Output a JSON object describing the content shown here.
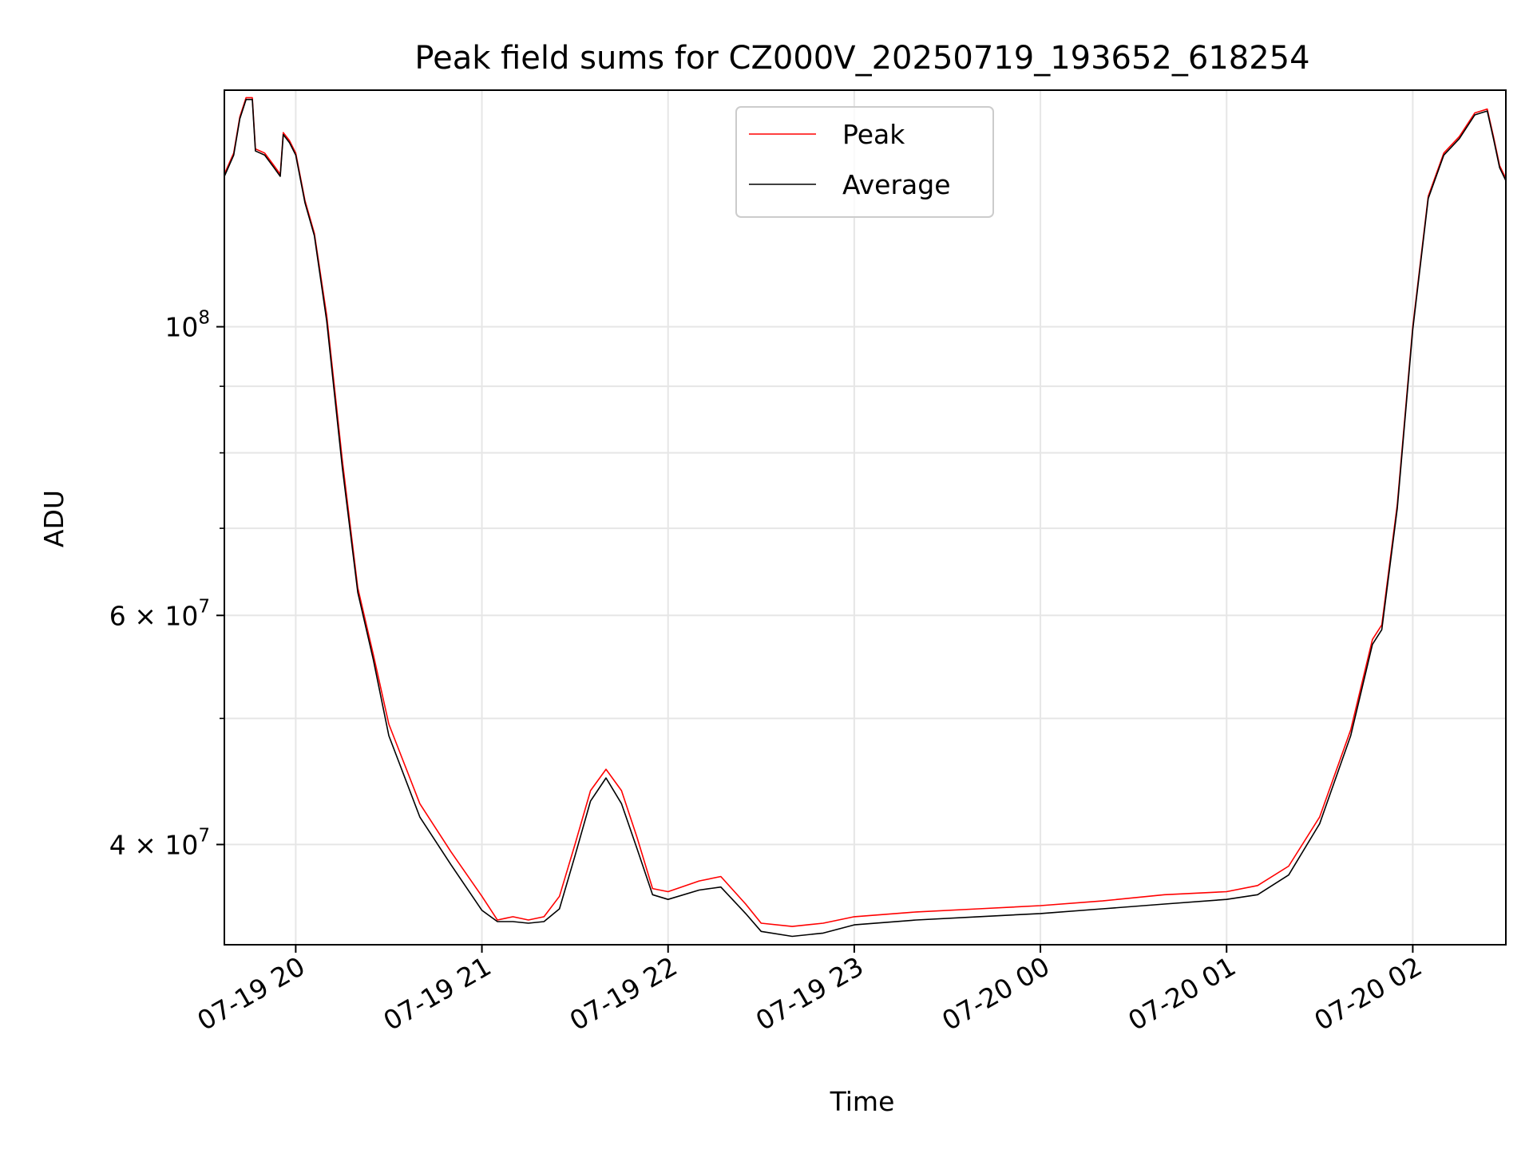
{
  "chart_data": {
    "type": "line",
    "title": "Peak field sums for CZ000V_20250719_193652_618254",
    "xlabel": "Time",
    "ylabel": "ADU",
    "y_scale": "log",
    "xlim": [
      "2025-07-19 19:37",
      "2025-07-20 02:30"
    ],
    "ylim": [
      33500000,
      152000000
    ],
    "grid": true,
    "legend_position": "top-center",
    "x_ticks": [
      {
        "t": "2025-07-19 20:00",
        "label": "07-19 20"
      },
      {
        "t": "2025-07-19 21:00",
        "label": "07-19 21"
      },
      {
        "t": "2025-07-19 22:00",
        "label": "07-19 22"
      },
      {
        "t": "2025-07-19 23:00",
        "label": "07-19 23"
      },
      {
        "t": "2025-07-20 00:00",
        "label": "07-20 00"
      },
      {
        "t": "2025-07-20 01:00",
        "label": "07-20 01"
      },
      {
        "t": "2025-07-20 02:00",
        "label": "07-20 02"
      }
    ],
    "y_major_ticks": [
      {
        "value": 100000000,
        "mant": "10",
        "exp": "8"
      },
      {
        "value": 60000000,
        "mant": "6 × 10",
        "exp": "7"
      },
      {
        "value": 40000000,
        "mant": "4 × 10",
        "exp": "7"
      }
    ],
    "y_minor_ticks": [
      50000000,
      70000000,
      80000000,
      90000000
    ],
    "series": [
      {
        "name": "Peak",
        "color": "#ff0000",
        "points": [
          [
            "2025-07-19 19:37",
            131000000
          ],
          [
            "2025-07-19 19:40",
            136000000
          ],
          [
            "2025-07-19 19:42",
            145000000
          ],
          [
            "2025-07-19 19:44",
            150000000
          ],
          [
            "2025-07-19 19:46",
            150000000
          ],
          [
            "2025-07-19 19:47",
            137000000
          ],
          [
            "2025-07-19 19:50",
            136000000
          ],
          [
            "2025-07-19 19:53",
            133000000
          ],
          [
            "2025-07-19 19:55",
            131000000
          ],
          [
            "2025-07-19 19:56",
            141000000
          ],
          [
            "2025-07-19 19:58",
            139000000
          ],
          [
            "2025-07-19 20:00",
            136000000
          ],
          [
            "2025-07-19 20:03",
            125000000
          ],
          [
            "2025-07-19 20:06",
            118000000
          ],
          [
            "2025-07-19 20:10",
            102000000
          ],
          [
            "2025-07-19 20:15",
            79000000
          ],
          [
            "2025-07-19 20:20",
            63000000
          ],
          [
            "2025-07-19 20:25",
            56000000
          ],
          [
            "2025-07-19 20:30",
            49500000
          ],
          [
            "2025-07-19 20:40",
            43000000
          ],
          [
            "2025-07-19 20:50",
            39500000
          ],
          [
            "2025-07-19 21:00",
            36500000
          ],
          [
            "2025-07-19 21:05",
            35000000
          ],
          [
            "2025-07-19 21:10",
            35200000
          ],
          [
            "2025-07-19 21:15",
            35000000
          ],
          [
            "2025-07-19 21:20",
            35200000
          ],
          [
            "2025-07-19 21:25",
            36500000
          ],
          [
            "2025-07-19 21:30",
            40000000
          ],
          [
            "2025-07-19 21:35",
            44000000
          ],
          [
            "2025-07-19 21:40",
            45700000
          ],
          [
            "2025-07-19 21:45",
            44000000
          ],
          [
            "2025-07-19 21:50",
            40500000
          ],
          [
            "2025-07-19 21:55",
            37000000
          ],
          [
            "2025-07-19 22:00",
            36800000
          ],
          [
            "2025-07-19 22:10",
            37500000
          ],
          [
            "2025-07-19 22:17",
            37800000
          ],
          [
            "2025-07-19 22:25",
            36000000
          ],
          [
            "2025-07-19 22:30",
            34800000
          ],
          [
            "2025-07-19 22:40",
            34600000
          ],
          [
            "2025-07-19 22:50",
            34800000
          ],
          [
            "2025-07-19 23:00",
            35200000
          ],
          [
            "2025-07-19 23:20",
            35500000
          ],
          [
            "2025-07-19 23:40",
            35700000
          ],
          [
            "2025-07-20 00:00",
            35900000
          ],
          [
            "2025-07-20 00:20",
            36200000
          ],
          [
            "2025-07-20 00:40",
            36600000
          ],
          [
            "2025-07-20 01:00",
            36800000
          ],
          [
            "2025-07-20 01:10",
            37200000
          ],
          [
            "2025-07-20 01:20",
            38500000
          ],
          [
            "2025-07-20 01:30",
            42000000
          ],
          [
            "2025-07-20 01:40",
            49000000
          ],
          [
            "2025-07-20 01:47",
            57500000
          ],
          [
            "2025-07-20 01:50",
            59000000
          ],
          [
            "2025-07-20 01:55",
            73000000
          ],
          [
            "2025-07-20 02:00",
            100000000
          ],
          [
            "2025-07-20 02:05",
            126000000
          ],
          [
            "2025-07-20 02:10",
            136000000
          ],
          [
            "2025-07-20 02:15",
            140000000
          ],
          [
            "2025-07-20 02:20",
            146000000
          ],
          [
            "2025-07-20 02:22",
            146500000
          ],
          [
            "2025-07-20 02:24",
            147000000
          ],
          [
            "2025-07-20 02:26",
            140000000
          ],
          [
            "2025-07-20 02:28",
            133000000
          ],
          [
            "2025-07-20 02:30",
            130000000
          ]
        ]
      },
      {
        "name": "Average",
        "color": "#000000",
        "points": [
          [
            "2025-07-19 19:37",
            130500000
          ],
          [
            "2025-07-19 19:40",
            135500000
          ],
          [
            "2025-07-19 19:42",
            144500000
          ],
          [
            "2025-07-19 19:44",
            149500000
          ],
          [
            "2025-07-19 19:46",
            149500000
          ],
          [
            "2025-07-19 19:47",
            136500000
          ],
          [
            "2025-07-19 19:50",
            135500000
          ],
          [
            "2025-07-19 19:53",
            132500000
          ],
          [
            "2025-07-19 19:55",
            130500000
          ],
          [
            "2025-07-19 19:56",
            140500000
          ],
          [
            "2025-07-19 19:58",
            138500000
          ],
          [
            "2025-07-19 20:00",
            135500000
          ],
          [
            "2025-07-19 20:03",
            124500000
          ],
          [
            "2025-07-19 20:06",
            117500000
          ],
          [
            "2025-07-19 20:10",
            101000000
          ],
          [
            "2025-07-19 20:15",
            78000000
          ],
          [
            "2025-07-19 20:20",
            62500000
          ],
          [
            "2025-07-19 20:25",
            55500000
          ],
          [
            "2025-07-19 20:30",
            48500000
          ],
          [
            "2025-07-19 20:40",
            42000000
          ],
          [
            "2025-07-19 20:50",
            38600000
          ],
          [
            "2025-07-19 21:00",
            35600000
          ],
          [
            "2025-07-19 21:05",
            34900000
          ],
          [
            "2025-07-19 21:10",
            34900000
          ],
          [
            "2025-07-19 21:15",
            34800000
          ],
          [
            "2025-07-19 21:20",
            34900000
          ],
          [
            "2025-07-19 21:25",
            35700000
          ],
          [
            "2025-07-19 21:30",
            39200000
          ],
          [
            "2025-07-19 21:35",
            43200000
          ],
          [
            "2025-07-19 21:40",
            45000000
          ],
          [
            "2025-07-19 21:45",
            43000000
          ],
          [
            "2025-07-19 21:50",
            39700000
          ],
          [
            "2025-07-19 21:55",
            36600000
          ],
          [
            "2025-07-19 22:00",
            36300000
          ],
          [
            "2025-07-19 22:10",
            36900000
          ],
          [
            "2025-07-19 22:17",
            37100000
          ],
          [
            "2025-07-19 22:25",
            35400000
          ],
          [
            "2025-07-19 22:30",
            34300000
          ],
          [
            "2025-07-19 22:40",
            34000000
          ],
          [
            "2025-07-19 22:50",
            34200000
          ],
          [
            "2025-07-19 23:00",
            34700000
          ],
          [
            "2025-07-19 23:20",
            35000000
          ],
          [
            "2025-07-19 23:40",
            35200000
          ],
          [
            "2025-07-20 00:00",
            35400000
          ],
          [
            "2025-07-20 00:20",
            35700000
          ],
          [
            "2025-07-20 00:40",
            36000000
          ],
          [
            "2025-07-20 01:00",
            36300000
          ],
          [
            "2025-07-20 01:10",
            36600000
          ],
          [
            "2025-07-20 01:20",
            37900000
          ],
          [
            "2025-07-20 01:30",
            41500000
          ],
          [
            "2025-07-20 01:40",
            48500000
          ],
          [
            "2025-07-20 01:47",
            57000000
          ],
          [
            "2025-07-20 01:50",
            58500000
          ],
          [
            "2025-07-20 01:55",
            72500000
          ],
          [
            "2025-07-20 02:00",
            99500000
          ],
          [
            "2025-07-20 02:05",
            125500000
          ],
          [
            "2025-07-20 02:10",
            135500000
          ],
          [
            "2025-07-20 02:15",
            139500000
          ],
          [
            "2025-07-20 02:20",
            145500000
          ],
          [
            "2025-07-20 02:22",
            146000000
          ],
          [
            "2025-07-20 02:24",
            146500000
          ],
          [
            "2025-07-20 02:26",
            139500000
          ],
          [
            "2025-07-20 02:28",
            132500000
          ],
          [
            "2025-07-20 02:30",
            129500000
          ]
        ]
      }
    ]
  }
}
